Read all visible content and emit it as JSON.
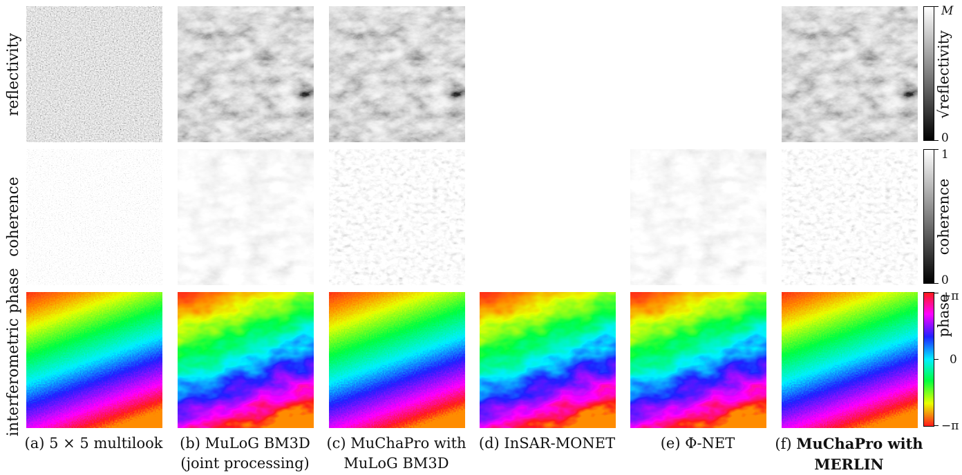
{
  "row_labels": {
    "reflectivity": "reflectivity",
    "coherence": "coherence",
    "phase": "interferometric phase"
  },
  "captions": {
    "a_1": "(a) 5 × 5 multilook",
    "b_1": "(b) MuLoG BM3D",
    "b_2": "(joint processing)",
    "c_1": "(c) MuChaPro with",
    "c_2": "MuLoG BM3D",
    "d_1": "(d) InSAR-MONET",
    "e_1": "(e) Φ-NET",
    "f_prefix": "(f) ",
    "f_bold_1": "MuChaPro with",
    "f_bold_2": "MERLIN"
  },
  "colorbars": {
    "reflectivity": {
      "label": "√reflectivity",
      "top": "M",
      "bottom": "0"
    },
    "coherence": {
      "label": "coherence",
      "top": "1",
      "bottom": "0"
    },
    "phase": {
      "label": "phase",
      "top": "+π",
      "mid": "0",
      "bottom": "−π"
    }
  },
  "colors": {
    "phase_red": "#ff1a1a",
    "phase_yellow": "#e8ff00",
    "phase_green": "#00ff40",
    "phase_cyan": "#00f0ff",
    "phase_blue": "#2020ff",
    "phase_magenta": "#ff00ff"
  }
}
